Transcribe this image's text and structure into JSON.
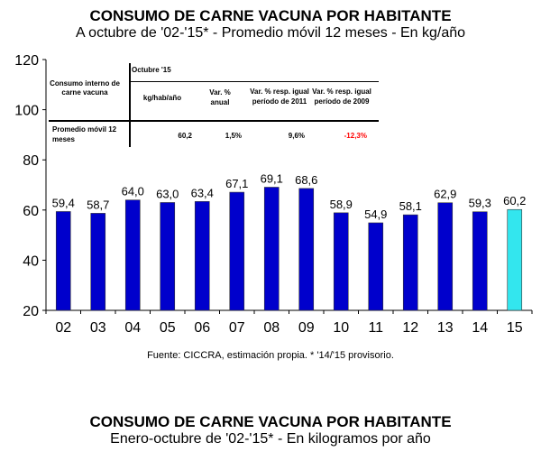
{
  "chart_data": {
    "type": "bar",
    "title": "CONSUMO DE CARNE VACUNA POR HABITANTE",
    "subtitle": "A octubre de '02-'15* - Promedio móvil 12 meses -  En kg/año",
    "categories": [
      "02",
      "03",
      "04",
      "05",
      "06",
      "07",
      "08",
      "09",
      "10",
      "11",
      "12",
      "13",
      "14",
      "15"
    ],
    "values": [
      59.4,
      58.7,
      64.0,
      63.0,
      63.4,
      67.1,
      69.1,
      68.6,
      58.9,
      54.9,
      58.1,
      62.9,
      59.3,
      60.2
    ],
    "value_labels": [
      "59,4",
      "58,7",
      "64,0",
      "63,0",
      "63,4",
      "67,1",
      "69,1",
      "68,6",
      "58,9",
      "54,9",
      "58,1",
      "62,9",
      "59,3",
      "60,2"
    ],
    "highlight_index": 13,
    "colors": {
      "bar": "#0000cc",
      "highlight": "#33e6ee"
    },
    "ylim": [
      20,
      120
    ],
    "yticks": [
      "20",
      "40",
      "60",
      "80",
      "100",
      "120"
    ],
    "xlabel": "",
    "ylabel": "",
    "grid": false,
    "source": "Fuente: CICCRA, estimación propia. * '14/'15 provisorio."
  },
  "table": {
    "row_header": "Consumo interno de carne vacuna",
    "period": "Octubre '15",
    "columns": [
      "kg/hab/año",
      "Var. % anual",
      "Var. % resp. igual período de 2011",
      "Var. % resp. igual período de 2009"
    ],
    "row_label": "Promedio móvil 12 meses",
    "values": [
      "60,2",
      "1,5%",
      "9,6%",
      "-12,3%"
    ],
    "negative_color": "#ff0000"
  },
  "second_chart": {
    "title": "CONSUMO DE CARNE VACUNA POR HABITANTE",
    "subtitle": "Enero-octubre de '02-'15* - En kilogramos por año"
  }
}
